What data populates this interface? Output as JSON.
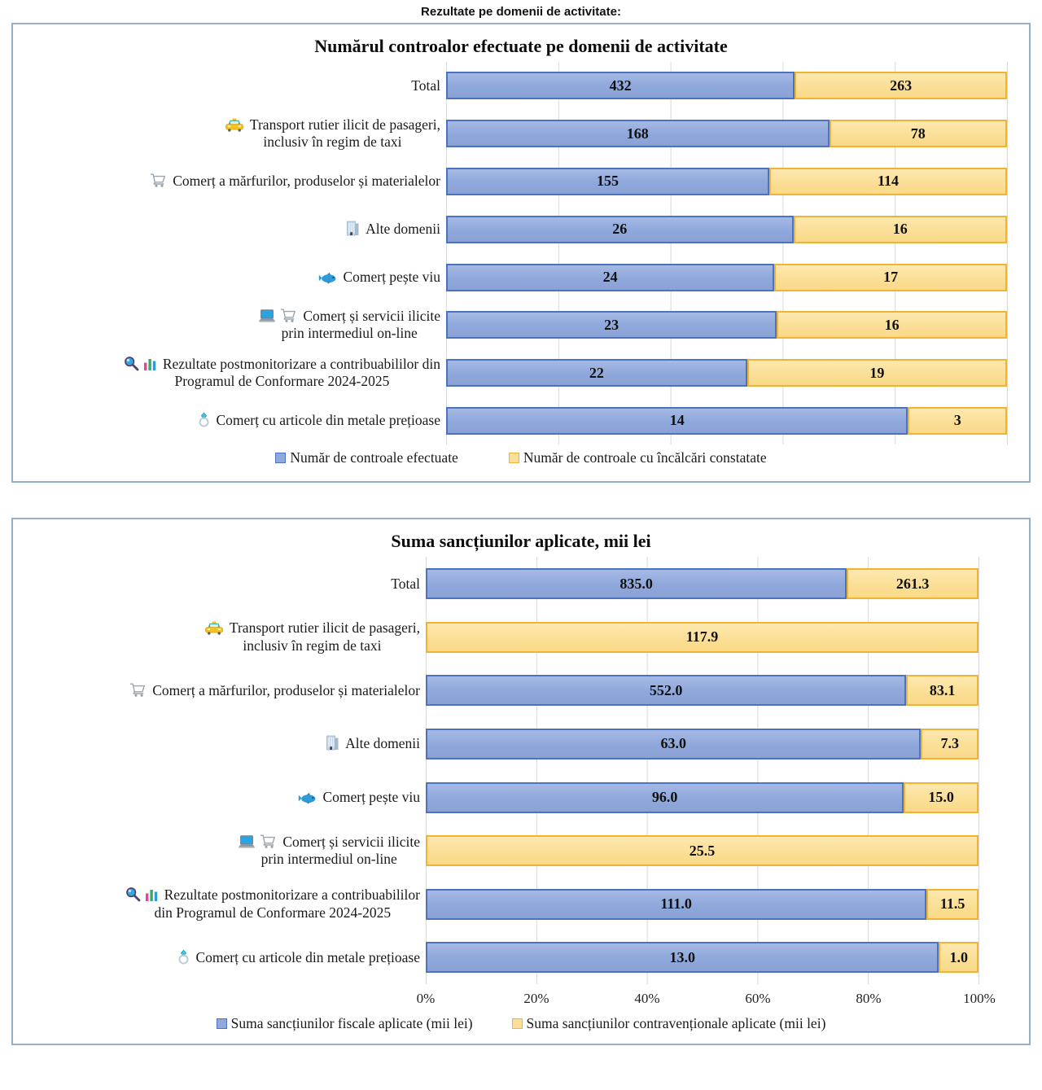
{
  "page": {
    "title": "Rezultate pe domenii de activitate:"
  },
  "colors": {
    "series1_fill": "#90A9DC",
    "series1_border": "#4C73BE",
    "series2_fill": "#FBDF96",
    "series2_border": "#F0B333",
    "gridline": "#D9D9D9",
    "box_border": "#92B1C8"
  },
  "chart_data": [
    {
      "type": "bar",
      "subtype": "horizontal-100pct-stacked",
      "title": "Numărul controalor efectuate pe domenii de activitate",
      "grid": true,
      "legend_position": "bottom",
      "categories": [
        {
          "label": "Total",
          "icons": []
        },
        {
          "label": "Transport rutier ilicit de pasageri,\ninclusiv în regim de taxi",
          "icons": [
            "taxi-icon"
          ]
        },
        {
          "label": "Comerț a mărfurilor, produselor și materialelor",
          "icons": [
            "cart-icon"
          ]
        },
        {
          "label": "Alte domenii",
          "icons": [
            "building-icon"
          ]
        },
        {
          "label": "Comerț pește viu",
          "icons": [
            "fish-icon"
          ]
        },
        {
          "label": "Comerț și servicii ilicite\nprin intermediul on-line",
          "icons": [
            "laptop-icon",
            "cart-icon"
          ]
        },
        {
          "label": "Rezultate postmonitorizare a contribuabililor din\nProgramul de Conformare 2024-2025",
          "icons": [
            "magnifier-icon",
            "bar-chart-icon"
          ]
        },
        {
          "label": "Comerț cu articole din metale prețioase",
          "icons": [
            "ring-icon"
          ]
        }
      ],
      "series": [
        {
          "name": "Număr de controale efectuate",
          "values": [
            432,
            168,
            155,
            26,
            24,
            23,
            22,
            14
          ],
          "labels": [
            "432",
            "168",
            "155",
            "26",
            "24",
            "23",
            "22",
            "14"
          ]
        },
        {
          "name": "Număr de controale cu încălcări constatate",
          "values": [
            263,
            78,
            114,
            16,
            17,
            16,
            19,
            3
          ],
          "labels": [
            "263",
            "78",
            "114",
            "16",
            "17",
            "16",
            "19",
            "3"
          ]
        }
      ]
    },
    {
      "type": "bar",
      "subtype": "horizontal-100pct-stacked",
      "title": "Suma sancțiunilor aplicate, mii lei",
      "grid": true,
      "legend_position": "bottom",
      "x_ticks": [
        "0%",
        "20%",
        "40%",
        "60%",
        "80%",
        "100%"
      ],
      "xlim_percent": [
        0,
        100
      ],
      "categories": [
        {
          "label": "Total",
          "icons": []
        },
        {
          "label": "Transport rutier ilicit de pasageri,\ninclusiv în regim de taxi",
          "icons": [
            "taxi-icon"
          ]
        },
        {
          "label": "Comerț a mărfurilor, produselor și materialelor",
          "icons": [
            "cart-icon"
          ]
        },
        {
          "label": "Alte domenii",
          "icons": [
            "building-icon"
          ]
        },
        {
          "label": "Comerț pește viu",
          "icons": [
            "fish-icon"
          ]
        },
        {
          "label": "Comerț și servicii ilicite\nprin intermediul on-line",
          "icons": [
            "laptop-icon",
            "cart-icon"
          ]
        },
        {
          "label": "Rezultate postmonitorizare a contribuabililor\ndin Programul de Conformare 2024-2025",
          "icons": [
            "magnifier-icon",
            "bar-chart-icon"
          ]
        },
        {
          "label": "Comerț cu articole din metale prețioase",
          "icons": [
            "ring-icon"
          ]
        }
      ],
      "series": [
        {
          "name": "Suma sancțiunilor fiscale aplicate (mii lei)",
          "values": [
            835.0,
            null,
            552.0,
            63.0,
            96.0,
            null,
            111.0,
            13.0
          ],
          "labels": [
            "835.0",
            null,
            "552.0",
            "63.0",
            "96.0",
            null,
            "111.0",
            "13.0"
          ]
        },
        {
          "name": "Suma sancțiunilor contravenționale aplicate (mii lei)",
          "values": [
            261.3,
            117.9,
            83.1,
            7.3,
            15.0,
            25.5,
            11.5,
            1.0
          ],
          "labels": [
            "261.3",
            "117.9",
            "83.1",
            "7.3",
            "15.0",
            "25.5",
            "11.5",
            "1.0"
          ]
        }
      ]
    }
  ]
}
